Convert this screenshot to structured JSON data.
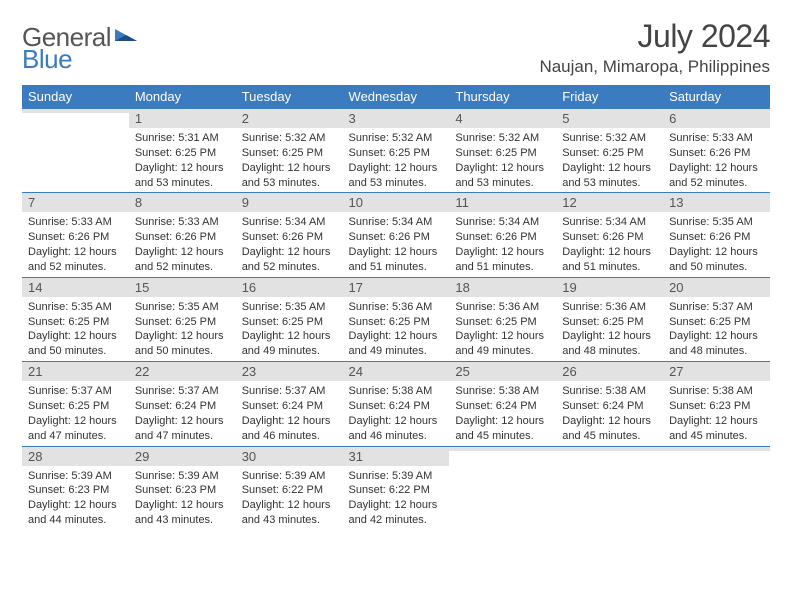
{
  "logo": {
    "text1": "General",
    "text2": "Blue"
  },
  "title": "July 2024",
  "location": "Naujan, Mimaropa, Philippines",
  "days_of_week": [
    "Sunday",
    "Monday",
    "Tuesday",
    "Wednesday",
    "Thursday",
    "Friday",
    "Saturday"
  ],
  "colors": {
    "header_bg": "#3b7bbf",
    "header_text": "#ffffff",
    "daynum_bg": "#e2e2e2",
    "daynum_border": "#3b7bbf",
    "body_text": "#333333",
    "logo_gray": "#555555",
    "logo_blue": "#3b7bbf"
  },
  "typography": {
    "title_fontsize": 32,
    "location_fontsize": 17,
    "header_fontsize": 13,
    "daynum_fontsize": 13,
    "body_fontsize": 11
  },
  "weeks": [
    [
      {
        "num": "",
        "sunrise": "",
        "sunset": "",
        "daylight": ""
      },
      {
        "num": "1",
        "sunrise": "5:31 AM",
        "sunset": "6:25 PM",
        "daylight": "12 hours and 53 minutes."
      },
      {
        "num": "2",
        "sunrise": "5:32 AM",
        "sunset": "6:25 PM",
        "daylight": "12 hours and 53 minutes."
      },
      {
        "num": "3",
        "sunrise": "5:32 AM",
        "sunset": "6:25 PM",
        "daylight": "12 hours and 53 minutes."
      },
      {
        "num": "4",
        "sunrise": "5:32 AM",
        "sunset": "6:25 PM",
        "daylight": "12 hours and 53 minutes."
      },
      {
        "num": "5",
        "sunrise": "5:32 AM",
        "sunset": "6:25 PM",
        "daylight": "12 hours and 53 minutes."
      },
      {
        "num": "6",
        "sunrise": "5:33 AM",
        "sunset": "6:26 PM",
        "daylight": "12 hours and 52 minutes."
      }
    ],
    [
      {
        "num": "7",
        "sunrise": "5:33 AM",
        "sunset": "6:26 PM",
        "daylight": "12 hours and 52 minutes."
      },
      {
        "num": "8",
        "sunrise": "5:33 AM",
        "sunset": "6:26 PM",
        "daylight": "12 hours and 52 minutes."
      },
      {
        "num": "9",
        "sunrise": "5:34 AM",
        "sunset": "6:26 PM",
        "daylight": "12 hours and 52 minutes."
      },
      {
        "num": "10",
        "sunrise": "5:34 AM",
        "sunset": "6:26 PM",
        "daylight": "12 hours and 51 minutes."
      },
      {
        "num": "11",
        "sunrise": "5:34 AM",
        "sunset": "6:26 PM",
        "daylight": "12 hours and 51 minutes."
      },
      {
        "num": "12",
        "sunrise": "5:34 AM",
        "sunset": "6:26 PM",
        "daylight": "12 hours and 51 minutes."
      },
      {
        "num": "13",
        "sunrise": "5:35 AM",
        "sunset": "6:26 PM",
        "daylight": "12 hours and 50 minutes."
      }
    ],
    [
      {
        "num": "14",
        "sunrise": "5:35 AM",
        "sunset": "6:25 PM",
        "daylight": "12 hours and 50 minutes."
      },
      {
        "num": "15",
        "sunrise": "5:35 AM",
        "sunset": "6:25 PM",
        "daylight": "12 hours and 50 minutes."
      },
      {
        "num": "16",
        "sunrise": "5:35 AM",
        "sunset": "6:25 PM",
        "daylight": "12 hours and 49 minutes."
      },
      {
        "num": "17",
        "sunrise": "5:36 AM",
        "sunset": "6:25 PM",
        "daylight": "12 hours and 49 minutes."
      },
      {
        "num": "18",
        "sunrise": "5:36 AM",
        "sunset": "6:25 PM",
        "daylight": "12 hours and 49 minutes."
      },
      {
        "num": "19",
        "sunrise": "5:36 AM",
        "sunset": "6:25 PM",
        "daylight": "12 hours and 48 minutes."
      },
      {
        "num": "20",
        "sunrise": "5:37 AM",
        "sunset": "6:25 PM",
        "daylight": "12 hours and 48 minutes."
      }
    ],
    [
      {
        "num": "21",
        "sunrise": "5:37 AM",
        "sunset": "6:25 PM",
        "daylight": "12 hours and 47 minutes."
      },
      {
        "num": "22",
        "sunrise": "5:37 AM",
        "sunset": "6:24 PM",
        "daylight": "12 hours and 47 minutes."
      },
      {
        "num": "23",
        "sunrise": "5:37 AM",
        "sunset": "6:24 PM",
        "daylight": "12 hours and 46 minutes."
      },
      {
        "num": "24",
        "sunrise": "5:38 AM",
        "sunset": "6:24 PM",
        "daylight": "12 hours and 46 minutes."
      },
      {
        "num": "25",
        "sunrise": "5:38 AM",
        "sunset": "6:24 PM",
        "daylight": "12 hours and 45 minutes."
      },
      {
        "num": "26",
        "sunrise": "5:38 AM",
        "sunset": "6:24 PM",
        "daylight": "12 hours and 45 minutes."
      },
      {
        "num": "27",
        "sunrise": "5:38 AM",
        "sunset": "6:23 PM",
        "daylight": "12 hours and 45 minutes."
      }
    ],
    [
      {
        "num": "28",
        "sunrise": "5:39 AM",
        "sunset": "6:23 PM",
        "daylight": "12 hours and 44 minutes."
      },
      {
        "num": "29",
        "sunrise": "5:39 AM",
        "sunset": "6:23 PM",
        "daylight": "12 hours and 43 minutes."
      },
      {
        "num": "30",
        "sunrise": "5:39 AM",
        "sunset": "6:22 PM",
        "daylight": "12 hours and 43 minutes."
      },
      {
        "num": "31",
        "sunrise": "5:39 AM",
        "sunset": "6:22 PM",
        "daylight": "12 hours and 42 minutes."
      },
      {
        "num": "",
        "sunrise": "",
        "sunset": "",
        "daylight": ""
      },
      {
        "num": "",
        "sunrise": "",
        "sunset": "",
        "daylight": ""
      },
      {
        "num": "",
        "sunrise": "",
        "sunset": "",
        "daylight": ""
      }
    ]
  ],
  "labels": {
    "sunrise": "Sunrise:",
    "sunset": "Sunset:",
    "daylight": "Daylight:"
  }
}
